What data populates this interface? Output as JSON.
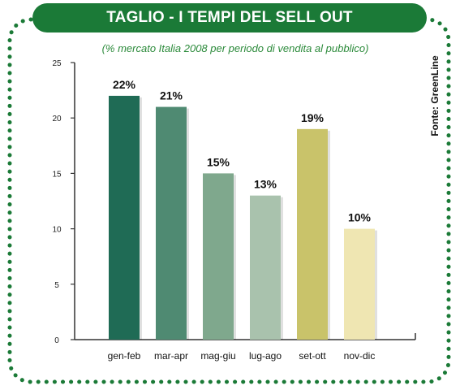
{
  "header": {
    "title": "TAGLIO - I TEMPI DEL SELL OUT",
    "subtitle": "(% mercato Italia 2008 per periodo di vendita al pubblico)",
    "source": "Fonte: GreenLine"
  },
  "colors": {
    "frame_dots": "#1b7a37",
    "title_bg": "#1b7a37",
    "subtitle": "#2b8a3a",
    "axis": "#333333"
  },
  "chart_data": {
    "type": "bar",
    "categories": [
      "gen-feb",
      "mar-apr",
      "mag-giu",
      "lug-ago",
      "set-ott",
      "nov-dic"
    ],
    "values": [
      22,
      21,
      15,
      13,
      19,
      10
    ],
    "value_labels": [
      "22%",
      "21%",
      "15%",
      "13%",
      "19%",
      "10%"
    ],
    "bar_colors": [
      "#1f6b55",
      "#4f8a72",
      "#7fa88d",
      "#a9c2ad",
      "#c9c36a",
      "#efe6b2"
    ],
    "title": "TAGLIO - I TEMPI DEL SELL OUT",
    "xlabel": "",
    "ylabel": "",
    "ylim": [
      0,
      25
    ],
    "yticks": [
      0,
      5,
      10,
      15,
      20,
      25
    ],
    "grid": false
  }
}
